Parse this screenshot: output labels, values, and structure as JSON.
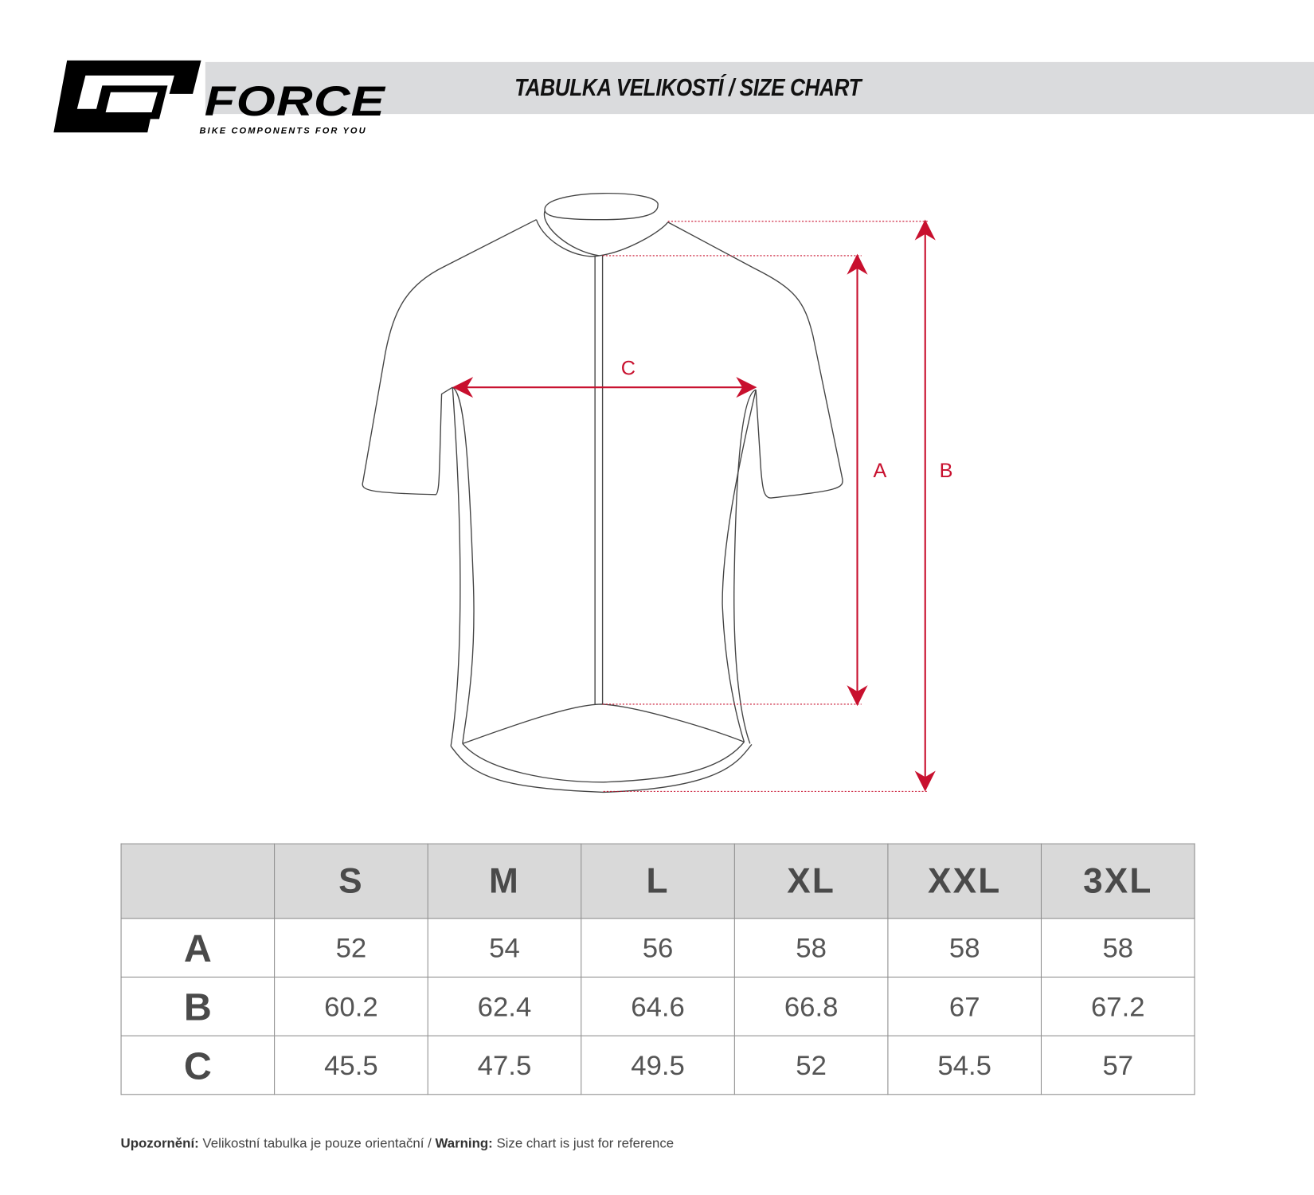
{
  "header": {
    "brand": "FORCE",
    "tagline": "BIKE COMPONENTS FOR YOU",
    "title": "TABULKA VELIKOSTÍ / SIZE CHART"
  },
  "diagram": {
    "labels": {
      "a": "A",
      "b": "B",
      "c": "C"
    },
    "accent_color": "#c8102e"
  },
  "table": {
    "columns": [
      "",
      "S",
      "M",
      "L",
      "XL",
      "XXL",
      "3XL"
    ],
    "rows": [
      {
        "label": "A",
        "values": [
          "52",
          "54",
          "56",
          "58",
          "58",
          "58"
        ]
      },
      {
        "label": "B",
        "values": [
          "60.2",
          "62.4",
          "64.6",
          "66.8",
          "67",
          "67.2"
        ]
      },
      {
        "label": "C",
        "values": [
          "45.5",
          "47.5",
          "49.5",
          "52",
          "54.5",
          "57"
        ]
      }
    ]
  },
  "note": {
    "cz_label": "Upozornění:",
    "cz_text": " Velikostní tabulka je pouze orientační / ",
    "en_label": "Warning:",
    "en_text": " Size chart is just for reference"
  }
}
